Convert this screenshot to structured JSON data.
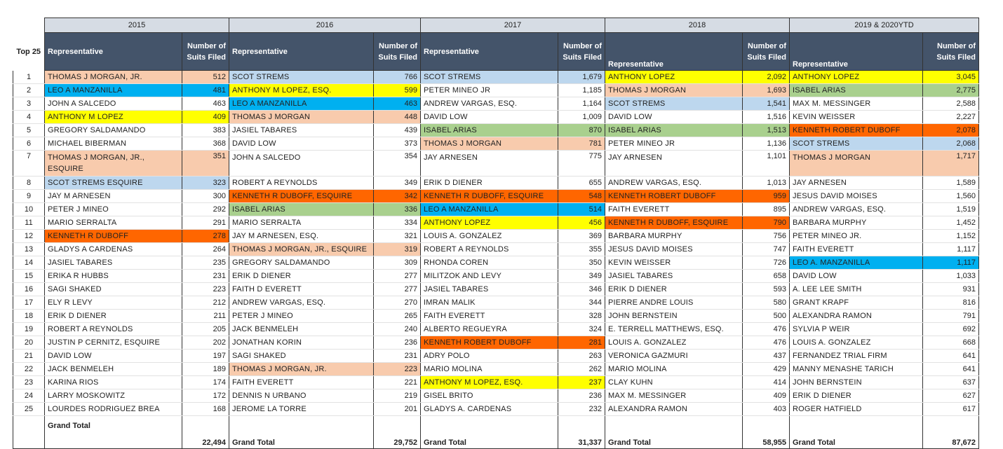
{
  "rank_header": "Top 25",
  "rep_header": "Representative",
  "num_header_short": "Number of Suits Filed",
  "num_header_last": "Number of Suits Filed",
  "grand_total_label": "Grand Total",
  "colors": {
    "salmon": "#f8cbad",
    "blue": "#00b0f0",
    "lightblue": "#bdd7ee",
    "yellow": "#ffff00",
    "orange": "#ff6600",
    "green": "#a9d08e",
    "header": "#44546a",
    "year_band": "#d6dce4"
  },
  "years": [
    {
      "label": "2015",
      "total": "22,494",
      "rows": [
        {
          "rep": "THOMAS J MORGAN, JR.",
          "num": "512",
          "color": "salmon"
        },
        {
          "rep": "LEO A MANZANILLA",
          "num": "481",
          "color": "blue"
        },
        {
          "rep": "JOHN A SALCEDO",
          "num": "463",
          "color": ""
        },
        {
          "rep": "ANTHONY M LOPEZ",
          "num": "409",
          "color": "yellow"
        },
        {
          "rep": "GREGORY  SALDAMANDO",
          "num": "383",
          "color": ""
        },
        {
          "rep": "MICHAEL  BIBERMAN",
          "num": "368",
          "color": ""
        },
        {
          "rep": "THOMAS J MORGAN, JR., ESQUIRE",
          "num": "351",
          "color": "salmon"
        },
        {
          "rep": "SCOT STREMS ESQUIRE",
          "num": "323",
          "color": "lightblue"
        },
        {
          "rep": "JAY M ARNESEN",
          "num": "300",
          "color": ""
        },
        {
          "rep": "PETER J MINEO",
          "num": "292",
          "color": ""
        },
        {
          "rep": "MARIO  SERRALTA",
          "num": "291",
          "color": ""
        },
        {
          "rep": "KENNETH R DUBOFF",
          "num": "278",
          "color": "orange"
        },
        {
          "rep": "GLADYS A CARDENAS",
          "num": "264",
          "color": ""
        },
        {
          "rep": "JASIEL  TABARES",
          "num": "235",
          "color": ""
        },
        {
          "rep": "ERIKA R HUBBS",
          "num": "231",
          "color": ""
        },
        {
          "rep": "SAGI  SHAKED",
          "num": "223",
          "color": ""
        },
        {
          "rep": "ELY R LEVY",
          "num": "212",
          "color": ""
        },
        {
          "rep": "ERIK D DIENER",
          "num": "211",
          "color": ""
        },
        {
          "rep": "ROBERT A REYNOLDS",
          "num": "205",
          "color": ""
        },
        {
          "rep": "JUSTIN P CERNITZ, ESQUIRE",
          "num": "202",
          "color": ""
        },
        {
          "rep": "DAVID  LOW",
          "num": "197",
          "color": ""
        },
        {
          "rep": "JACK  BENMELEH",
          "num": "189",
          "color": ""
        },
        {
          "rep": "KARINA  RIOS",
          "num": "174",
          "color": ""
        },
        {
          "rep": "LARRY  MOSKOWITZ",
          "num": "172",
          "color": ""
        },
        {
          "rep": "LOURDES RODRIGUEZ BREA",
          "num": "168",
          "color": ""
        }
      ]
    },
    {
      "label": "2016",
      "total": "29,752",
      "rows": [
        {
          "rep": "SCOT  STREMS",
          "num": "766",
          "color": "lightblue"
        },
        {
          "rep": "ANTHONY M LOPEZ, ESQ.",
          "num": "599",
          "color": "yellow"
        },
        {
          "rep": "LEO A MANZANILLA",
          "num": "463",
          "color": "blue"
        },
        {
          "rep": "THOMAS J MORGAN",
          "num": "448",
          "color": "salmon"
        },
        {
          "rep": "JASIEL  TABARES",
          "num": "439",
          "color": ""
        },
        {
          "rep": "DAVID  LOW",
          "num": "373",
          "color": ""
        },
        {
          "rep": "JOHN A SALCEDO",
          "num": "354",
          "color": ""
        },
        {
          "rep": "ROBERT A REYNOLDS",
          "num": "349",
          "color": ""
        },
        {
          "rep": "KENNETH R DUBOFF, ESQUIRE",
          "num": "342",
          "color": "orange"
        },
        {
          "rep": "ISABEL  ARIAS",
          "num": "336",
          "color": "green"
        },
        {
          "rep": "MARIO  SERRALTA",
          "num": "334",
          "color": ""
        },
        {
          "rep": "JAY M ARNESEN, ESQ.",
          "num": "321",
          "color": ""
        },
        {
          "rep": "THOMAS J MORGAN, JR., ESQUIRE",
          "num": "319",
          "color": "salmon"
        },
        {
          "rep": "GREGORY  SALDAMANDO",
          "num": "309",
          "color": ""
        },
        {
          "rep": "ERIK D DIENER",
          "num": "277",
          "color": ""
        },
        {
          "rep": "FAITH D EVERETT",
          "num": "277",
          "color": ""
        },
        {
          "rep": "ANDREW  VARGAS, ESQ.",
          "num": "270",
          "color": ""
        },
        {
          "rep": "PETER J MINEO",
          "num": "265",
          "color": ""
        },
        {
          "rep": "JACK  BENMELEH",
          "num": "240",
          "color": ""
        },
        {
          "rep": "JONATHAN  KORIN",
          "num": "236",
          "color": ""
        },
        {
          "rep": "SAGI  SHAKED",
          "num": "231",
          "color": ""
        },
        {
          "rep": "THOMAS J MORGAN, JR.",
          "num": "223",
          "color": "salmon"
        },
        {
          "rep": "FAITH  EVERETT",
          "num": "221",
          "color": ""
        },
        {
          "rep": "DENNIS N URBANO",
          "num": "219",
          "color": ""
        },
        {
          "rep": "JEROME LA TORRE",
          "num": "201",
          "color": ""
        }
      ]
    },
    {
      "label": "2017",
      "total": "31,337",
      "rows": [
        {
          "rep": "SCOT  STREMS",
          "num": "1,679",
          "color": "lightblue"
        },
        {
          "rep": "PETER  MINEO JR",
          "num": "1,185",
          "color": ""
        },
        {
          "rep": "ANDREW  VARGAS, ESQ.",
          "num": "1,164",
          "color": ""
        },
        {
          "rep": "DAVID  LOW",
          "num": "1,009",
          "color": ""
        },
        {
          "rep": "ISABEL  ARIAS",
          "num": "870",
          "color": "green"
        },
        {
          "rep": "THOMAS J MORGAN",
          "num": "781",
          "color": "salmon"
        },
        {
          "rep": "JAY  ARNESEN",
          "num": "775",
          "color": ""
        },
        {
          "rep": "ERIK D DIENER",
          "num": "655",
          "color": ""
        },
        {
          "rep": "KENNETH R DUBOFF, ESQUIRE",
          "num": "548",
          "color": "orange"
        },
        {
          "rep": "LEO A MANZANILLA",
          "num": "514",
          "color": "blue"
        },
        {
          "rep": "ANTHONY  LOPEZ",
          "num": "456",
          "color": "yellow"
        },
        {
          "rep": "LOUIS A. GONZALEZ",
          "num": "369",
          "color": ""
        },
        {
          "rep": "ROBERT A REYNOLDS",
          "num": "355",
          "color": ""
        },
        {
          "rep": "RHONDA  COREN",
          "num": "350",
          "color": ""
        },
        {
          "rep": "MILITZOK  AND LEVY",
          "num": "349",
          "color": ""
        },
        {
          "rep": "JASIEL  TABARES",
          "num": "346",
          "color": ""
        },
        {
          "rep": "IMRAN  MALIK",
          "num": "344",
          "color": ""
        },
        {
          "rep": "FAITH  EVERETT",
          "num": "328",
          "color": ""
        },
        {
          "rep": "ALBERTO  REGUEYRA",
          "num": "324",
          "color": ""
        },
        {
          "rep": "KENNETH ROBERT DUBOFF",
          "num": "281",
          "color": "orange"
        },
        {
          "rep": "ADRY  POLO",
          "num": "263",
          "color": ""
        },
        {
          "rep": "MARIO  MOLINA",
          "num": "262",
          "color": ""
        },
        {
          "rep": "ANTHONY M LOPEZ, ESQ.",
          "num": "237",
          "color": "yellow"
        },
        {
          "rep": "GISEL  BRITO",
          "num": "236",
          "color": ""
        },
        {
          "rep": "GLADYS  A.  CARDENAS",
          "num": "232",
          "color": ""
        }
      ]
    },
    {
      "label": "2018",
      "total": "58,955",
      "rows": [
        {
          "rep": "ANTHONY  LOPEZ",
          "num": "2,092",
          "color": "yellow"
        },
        {
          "rep": "THOMAS J MORGAN",
          "num": "1,693",
          "color": "salmon"
        },
        {
          "rep": "SCOT  STREMS",
          "num": "1,541",
          "color": "lightblue"
        },
        {
          "rep": "DAVID  LOW",
          "num": "1,516",
          "color": ""
        },
        {
          "rep": "ISABEL  ARIAS",
          "num": "1,513",
          "color": "green"
        },
        {
          "rep": "PETER  MINEO JR",
          "num": "1,136",
          "color": ""
        },
        {
          "rep": "JAY  ARNESEN",
          "num": "1,101",
          "color": ""
        },
        {
          "rep": "ANDREW  VARGAS, ESQ.",
          "num": "1,013",
          "color": ""
        },
        {
          "rep": "KENNETH ROBERT DUBOFF",
          "num": "959",
          "color": "orange"
        },
        {
          "rep": "FAITH  EVERETT",
          "num": "895",
          "color": ""
        },
        {
          "rep": "KENNETH R DUBOFF, ESQUIRE",
          "num": "790",
          "color": "orange"
        },
        {
          "rep": "BARBARA  MURPHY",
          "num": "756",
          "color": ""
        },
        {
          "rep": "JESUS DAVID MOISES",
          "num": "747",
          "color": ""
        },
        {
          "rep": "KEVIN  WEISSER",
          "num": "726",
          "color": ""
        },
        {
          "rep": "JASIEL  TABARES",
          "num": "658",
          "color": ""
        },
        {
          "rep": "ERIK D DIENER",
          "num": "593",
          "color": ""
        },
        {
          "rep": "PIERRE ANDRE LOUIS",
          "num": "580",
          "color": ""
        },
        {
          "rep": "JOHN  BERNSTEIN",
          "num": "500",
          "color": ""
        },
        {
          "rep": "E. TERRELL MATTHEWS, ESQ.",
          "num": "476",
          "color": ""
        },
        {
          "rep": "LOUIS A. GONZALEZ",
          "num": "476",
          "color": ""
        },
        {
          "rep": "VERONICA  GAZMURI",
          "num": "437",
          "color": ""
        },
        {
          "rep": "MARIO  MOLINA",
          "num": "429",
          "color": ""
        },
        {
          "rep": "CLAY  KUHN",
          "num": "414",
          "color": ""
        },
        {
          "rep": "MAX M. MESSINGER",
          "num": "409",
          "color": ""
        },
        {
          "rep": "ALEXANDRA  RAMON",
          "num": "403",
          "color": ""
        }
      ]
    },
    {
      "label": "2019 & 2020YTD",
      "total": "87,672",
      "rows": [
        {
          "rep": "ANTHONY  LOPEZ",
          "num": "3,045",
          "color": "yellow"
        },
        {
          "rep": "ISABEL  ARIAS",
          "num": "2,775",
          "color": "green"
        },
        {
          "rep": "MAX M. MESSINGER",
          "num": "2,588",
          "color": ""
        },
        {
          "rep": "KEVIN  WEISSER",
          "num": "2,227",
          "color": ""
        },
        {
          "rep": "KENNETH ROBERT DUBOFF",
          "num": "2,078",
          "color": "orange"
        },
        {
          "rep": "SCOT  STREMS",
          "num": "2,068",
          "color": "lightblue"
        },
        {
          "rep": "THOMAS J MORGAN",
          "num": "1,717",
          "color": "salmon"
        },
        {
          "rep": "JAY  ARNESEN",
          "num": "1,589",
          "color": ""
        },
        {
          "rep": "JESUS DAVID MOISES",
          "num": "1,560",
          "color": ""
        },
        {
          "rep": "ANDREW  VARGAS, ESQ.",
          "num": "1,519",
          "color": ""
        },
        {
          "rep": "BARBARA  MURPHY",
          "num": "1,452",
          "color": ""
        },
        {
          "rep": "PETER  MINEO JR.",
          "num": "1,152",
          "color": ""
        },
        {
          "rep": "FAITH  EVERETT",
          "num": "1,117",
          "color": ""
        },
        {
          "rep": "LEO  A. MANZANILLA",
          "num": "1,117",
          "color": "blue"
        },
        {
          "rep": "DAVID  LOW",
          "num": "1,033",
          "color": ""
        },
        {
          "rep": "A. LEE LEE SMITH",
          "num": "931",
          "color": ""
        },
        {
          "rep": "GRANT  KRAPF",
          "num": "816",
          "color": ""
        },
        {
          "rep": "ALEXANDRA  RAMON",
          "num": "791",
          "color": ""
        },
        {
          "rep": "SYLVIA P WEIR",
          "num": "692",
          "color": ""
        },
        {
          "rep": "LOUIS A. GONZALEZ",
          "num": "668",
          "color": ""
        },
        {
          "rep": "FERNANDEZ TRIAL  FIRM",
          "num": "641",
          "color": ""
        },
        {
          "rep": "MANNY MENASHE TARICH",
          "num": "641",
          "color": ""
        },
        {
          "rep": "JOHN  BERNSTEIN",
          "num": "637",
          "color": ""
        },
        {
          "rep": "ERIK D DIENER",
          "num": "627",
          "color": ""
        },
        {
          "rep": "ROGER  HATFIELD",
          "num": "617",
          "color": ""
        }
      ]
    }
  ]
}
